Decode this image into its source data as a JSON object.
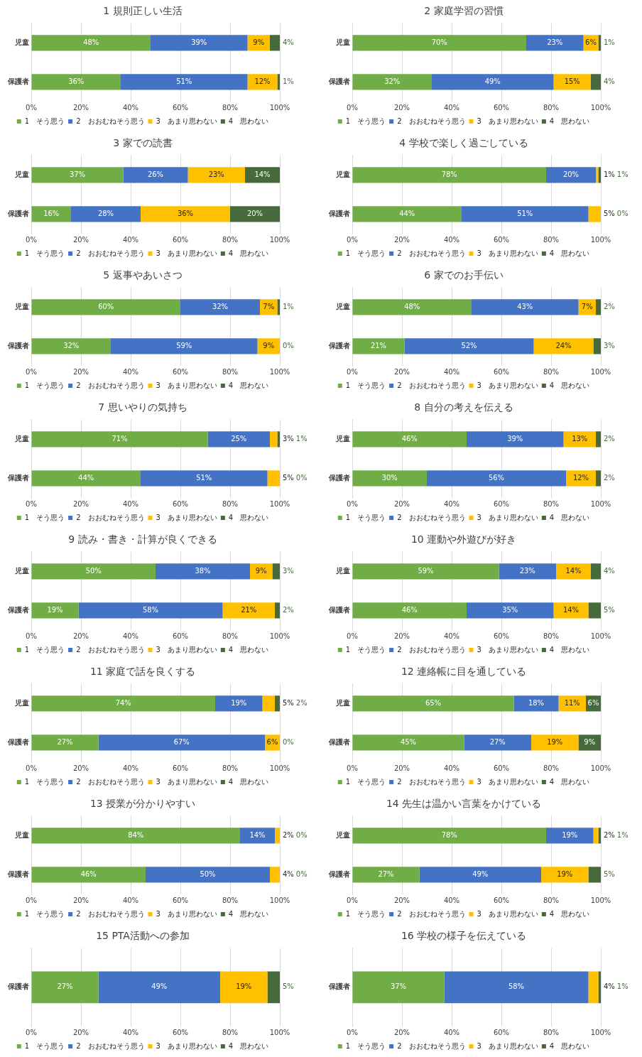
{
  "chart_data": [
    {
      "type": "bar",
      "orientation": "horizontal",
      "stacked": true,
      "title": "1 規則正しい生活",
      "categories": [
        "児童",
        "保護者"
      ],
      "xlim": [
        0,
        100
      ],
      "xticks": [
        {
          "value": 0,
          "label": "0%"
        },
        {
          "value": 20,
          "label": "20%"
        },
        {
          "value": 40,
          "label": "40%"
        },
        {
          "value": 60,
          "label": "60%"
        },
        {
          "value": 80,
          "label": "80%"
        },
        {
          "value": 100,
          "label": "100%"
        }
      ],
      "grid": "x",
      "legend": "bottom",
      "series": [
        {
          "name": "1　そう思う",
          "color": "#70ad47",
          "values": [
            48,
            36
          ],
          "value_labels": [
            "48%",
            "36%"
          ]
        },
        {
          "name": "2　おおむねそう思う",
          "color": "#4472c4",
          "values": [
            39,
            51
          ],
          "value_labels": [
            "39%",
            "51%"
          ]
        },
        {
          "name": "3　あまり思わない",
          "color": "#ffc000",
          "values": [
            9,
            12
          ],
          "value_labels": [
            "9%",
            "12%"
          ]
        },
        {
          "name": "4　思わない",
          "color": "#466a3b",
          "values": [
            4,
            1
          ],
          "value_labels": [
            "4%",
            "1%"
          ]
        }
      ]
    },
    {
      "type": "bar",
      "orientation": "horizontal",
      "stacked": true,
      "title": "2 家庭学習の習慣",
      "categories": [
        "児童",
        "保護者"
      ],
      "xlim": [
        0,
        100
      ],
      "xticks": [
        {
          "value": 0,
          "label": "0%"
        },
        {
          "value": 20,
          "label": "20%"
        },
        {
          "value": 40,
          "label": "40%"
        },
        {
          "value": 60,
          "label": "60%"
        },
        {
          "value": 80,
          "label": "80%"
        },
        {
          "value": 100,
          "label": "100%"
        }
      ],
      "grid": "x",
      "legend": "bottom",
      "series": [
        {
          "name": "1　そう思う",
          "color": "#70ad47",
          "values": [
            70,
            32
          ],
          "value_labels": [
            "70%",
            "32%"
          ]
        },
        {
          "name": "2　おおむねそう思う",
          "color": "#4472c4",
          "values": [
            23,
            49
          ],
          "value_labels": [
            "23%",
            "49%"
          ]
        },
        {
          "name": "3　あまり思わない",
          "color": "#ffc000",
          "values": [
            6,
            15
          ],
          "value_labels": [
            "6%",
            "15%"
          ]
        },
        {
          "name": "4　思わない",
          "color": "#466a3b",
          "values": [
            1,
            4
          ],
          "value_labels": [
            "1%",
            "4%"
          ]
        }
      ]
    },
    {
      "type": "bar",
      "orientation": "horizontal",
      "stacked": true,
      "title": "3 家での読書",
      "categories": [
        "児童",
        "保護者"
      ],
      "xlim": [
        0,
        100
      ],
      "xticks": [
        {
          "value": 0,
          "label": "0%"
        },
        {
          "value": 20,
          "label": "20%"
        },
        {
          "value": 40,
          "label": "40%"
        },
        {
          "value": 60,
          "label": "60%"
        },
        {
          "value": 80,
          "label": "80%"
        },
        {
          "value": 100,
          "label": "100%"
        }
      ],
      "grid": "x",
      "legend": "bottom",
      "series": [
        {
          "name": "1　そう思う",
          "color": "#70ad47",
          "values": [
            37,
            16
          ],
          "value_labels": [
            "37%",
            "16%"
          ]
        },
        {
          "name": "2　おおむねそう思う",
          "color": "#4472c4",
          "values": [
            26,
            28
          ],
          "value_labels": [
            "26%",
            "28%"
          ]
        },
        {
          "name": "3　あまり思わない",
          "color": "#ffc000",
          "values": [
            23,
            36
          ],
          "value_labels": [
            "23%",
            "36%"
          ]
        },
        {
          "name": "4　思わない",
          "color": "#466a3b",
          "values": [
            14,
            20
          ],
          "value_labels": [
            "14%",
            "20%"
          ]
        }
      ]
    },
    {
      "type": "bar",
      "orientation": "horizontal",
      "stacked": true,
      "title": "4 学校で楽しく過ごしている",
      "categories": [
        "児童",
        "保護者"
      ],
      "xlim": [
        0,
        100
      ],
      "xticks": [
        {
          "value": 0,
          "label": "0%"
        },
        {
          "value": 20,
          "label": "20%"
        },
        {
          "value": 40,
          "label": "40%"
        },
        {
          "value": 60,
          "label": "60%"
        },
        {
          "value": 80,
          "label": "80%"
        },
        {
          "value": 100,
          "label": "100%"
        }
      ],
      "grid": "x",
      "legend": "bottom",
      "series": [
        {
          "name": "1　そう思う",
          "color": "#70ad47",
          "values": [
            78,
            44
          ],
          "value_labels": [
            "78%",
            "44%"
          ]
        },
        {
          "name": "2　おおむねそう思う",
          "color": "#4472c4",
          "values": [
            20,
            51
          ],
          "value_labels": [
            "20%",
            "51%"
          ]
        },
        {
          "name": "3　あまり思わない",
          "color": "#ffc000",
          "values": [
            1,
            5
          ],
          "value_labels": [
            "1%",
            "5%"
          ]
        },
        {
          "name": "4　思わない",
          "color": "#466a3b",
          "values": [
            1,
            0
          ],
          "value_labels": [
            "1%",
            "0%"
          ]
        }
      ]
    },
    {
      "type": "bar",
      "orientation": "horizontal",
      "stacked": true,
      "title": "5 返事やあいさつ",
      "categories": [
        "児童",
        "保護者"
      ],
      "xlim": [
        0,
        100
      ],
      "xticks": [
        {
          "value": 0,
          "label": "0%"
        },
        {
          "value": 20,
          "label": "20%"
        },
        {
          "value": 40,
          "label": "40%"
        },
        {
          "value": 60,
          "label": "60%"
        },
        {
          "value": 80,
          "label": "80%"
        },
        {
          "value": 100,
          "label": "100%"
        }
      ],
      "grid": "x",
      "legend": "bottom",
      "series": [
        {
          "name": "1　そう思う",
          "color": "#70ad47",
          "values": [
            60,
            32
          ],
          "value_labels": [
            "60%",
            "32%"
          ]
        },
        {
          "name": "2　おおむねそう思う",
          "color": "#4472c4",
          "values": [
            32,
            59
          ],
          "value_labels": [
            "32%",
            "59%"
          ]
        },
        {
          "name": "3　あまり思わない",
          "color": "#ffc000",
          "values": [
            7,
            9
          ],
          "value_labels": [
            "7%",
            "9%"
          ]
        },
        {
          "name": "4　思わない",
          "color": "#466a3b",
          "values": [
            1,
            0
          ],
          "value_labels": [
            "1%",
            "0%"
          ]
        }
      ]
    },
    {
      "type": "bar",
      "orientation": "horizontal",
      "stacked": true,
      "title": "6 家でのお手伝い",
      "categories": [
        "児童",
        "保護者"
      ],
      "xlim": [
        0,
        100
      ],
      "xticks": [
        {
          "value": 0,
          "label": "0%"
        },
        {
          "value": 20,
          "label": "20%"
        },
        {
          "value": 40,
          "label": "40%"
        },
        {
          "value": 60,
          "label": "60%"
        },
        {
          "value": 80,
          "label": "80%"
        },
        {
          "value": 100,
          "label": "100%"
        }
      ],
      "grid": "x",
      "legend": "bottom",
      "series": [
        {
          "name": "1　そう思う",
          "color": "#70ad47",
          "values": [
            48,
            21
          ],
          "value_labels": [
            "48%",
            "21%"
          ]
        },
        {
          "name": "2　おおむねそう思う",
          "color": "#4472c4",
          "values": [
            43,
            52
          ],
          "value_labels": [
            "43%",
            "52%"
          ]
        },
        {
          "name": "3　あまり思わない",
          "color": "#ffc000",
          "values": [
            7,
            24
          ],
          "value_labels": [
            "7%",
            "24%"
          ]
        },
        {
          "name": "4　思わない",
          "color": "#466a3b",
          "values": [
            2,
            3
          ],
          "value_labels": [
            "2%",
            "3%"
          ]
        }
      ]
    },
    {
      "type": "bar",
      "orientation": "horizontal",
      "stacked": true,
      "title": "7 思いやりの気持ち",
      "categories": [
        "児童",
        "保護者"
      ],
      "xlim": [
        0,
        100
      ],
      "xticks": [
        {
          "value": 0,
          "label": "0%"
        },
        {
          "value": 20,
          "label": "20%"
        },
        {
          "value": 40,
          "label": "40%"
        },
        {
          "value": 60,
          "label": "60%"
        },
        {
          "value": 80,
          "label": "80%"
        },
        {
          "value": 100,
          "label": "100%"
        }
      ],
      "grid": "x",
      "legend": "bottom",
      "series": [
        {
          "name": "1　そう思う",
          "color": "#70ad47",
          "values": [
            71,
            44
          ],
          "value_labels": [
            "71%",
            "44%"
          ]
        },
        {
          "name": "2　おおむねそう思う",
          "color": "#4472c4",
          "values": [
            25,
            51
          ],
          "value_labels": [
            "25%",
            "51%"
          ]
        },
        {
          "name": "3　あまり思わない",
          "color": "#ffc000",
          "values": [
            3,
            5
          ],
          "value_labels": [
            "3%",
            "5%"
          ]
        },
        {
          "name": "4　思わない",
          "color": "#466a3b",
          "values": [
            1,
            0
          ],
          "value_labels": [
            "1%",
            "0%"
          ]
        }
      ]
    },
    {
      "type": "bar",
      "orientation": "horizontal",
      "stacked": true,
      "title": "8 自分の考えを伝える",
      "categories": [
        "児童",
        "保護者"
      ],
      "xlim": [
        0,
        100
      ],
      "xticks": [
        {
          "value": 0,
          "label": "0%"
        },
        {
          "value": 20,
          "label": "20%"
        },
        {
          "value": 40,
          "label": "40%"
        },
        {
          "value": 60,
          "label": "60%"
        },
        {
          "value": 80,
          "label": "80%"
        },
        {
          "value": 100,
          "label": "100%"
        }
      ],
      "grid": "x",
      "legend": "bottom",
      "series": [
        {
          "name": "1　そう思う",
          "color": "#70ad47",
          "values": [
            46,
            30
          ],
          "value_labels": [
            "46%",
            "30%"
          ]
        },
        {
          "name": "2　おおむねそう思う",
          "color": "#4472c4",
          "values": [
            39,
            56
          ],
          "value_labels": [
            "39%",
            "56%"
          ]
        },
        {
          "name": "3　あまり思わない",
          "color": "#ffc000",
          "values": [
            13,
            12
          ],
          "value_labels": [
            "13%",
            "12%"
          ]
        },
        {
          "name": "4　思わない",
          "color": "#466a3b",
          "values": [
            2,
            2
          ],
          "value_labels": [
            "2%",
            "2%"
          ]
        }
      ]
    },
    {
      "type": "bar",
      "orientation": "horizontal",
      "stacked": true,
      "title": "9 読み・書き・計算が良くできる",
      "categories": [
        "児童",
        "保護者"
      ],
      "xlim": [
        0,
        100
      ],
      "xticks": [
        {
          "value": 0,
          "label": "0%"
        },
        {
          "value": 20,
          "label": "20%"
        },
        {
          "value": 40,
          "label": "40%"
        },
        {
          "value": 60,
          "label": "60%"
        },
        {
          "value": 80,
          "label": "80%"
        },
        {
          "value": 100,
          "label": "100%"
        }
      ],
      "grid": "x",
      "legend": "bottom",
      "series": [
        {
          "name": "1　そう思う",
          "color": "#70ad47",
          "values": [
            50,
            19
          ],
          "value_labels": [
            "50%",
            "19%"
          ]
        },
        {
          "name": "2　おおむねそう思う",
          "color": "#4472c4",
          "values": [
            38,
            58
          ],
          "value_labels": [
            "38%",
            "58%"
          ]
        },
        {
          "name": "3　あまり思わない",
          "color": "#ffc000",
          "values": [
            9,
            21
          ],
          "value_labels": [
            "9%",
            "21%"
          ]
        },
        {
          "name": "4　思わない",
          "color": "#466a3b",
          "values": [
            3,
            2
          ],
          "value_labels": [
            "3%",
            "2%"
          ]
        }
      ]
    },
    {
      "type": "bar",
      "orientation": "horizontal",
      "stacked": true,
      "title": "10 運動や外遊びが好き",
      "categories": [
        "児童",
        "保護者"
      ],
      "xlim": [
        0,
        100
      ],
      "xticks": [
        {
          "value": 0,
          "label": "0%"
        },
        {
          "value": 20,
          "label": "20%"
        },
        {
          "value": 40,
          "label": "40%"
        },
        {
          "value": 60,
          "label": "60%"
        },
        {
          "value": 80,
          "label": "80%"
        },
        {
          "value": 100,
          "label": "100%"
        }
      ],
      "grid": "x",
      "legend": "bottom",
      "series": [
        {
          "name": "1　そう思う",
          "color": "#70ad47",
          "values": [
            59,
            46
          ],
          "value_labels": [
            "59%",
            "46%"
          ]
        },
        {
          "name": "2　おおむねそう思う",
          "color": "#4472c4",
          "values": [
            23,
            35
          ],
          "value_labels": [
            "23%",
            "35%"
          ]
        },
        {
          "name": "3　あまり思わない",
          "color": "#ffc000",
          "values": [
            14,
            14
          ],
          "value_labels": [
            "14%",
            "14%"
          ]
        },
        {
          "name": "4　思わない",
          "color": "#466a3b",
          "values": [
            4,
            5
          ],
          "value_labels": [
            "4%",
            "5%"
          ]
        }
      ]
    },
    {
      "type": "bar",
      "orientation": "horizontal",
      "stacked": true,
      "title": "11 家庭で話を良くする",
      "categories": [
        "児童",
        "保護者"
      ],
      "xlim": [
        0,
        100
      ],
      "xticks": [
        {
          "value": 0,
          "label": "0%"
        },
        {
          "value": 20,
          "label": "20%"
        },
        {
          "value": 40,
          "label": "40%"
        },
        {
          "value": 60,
          "label": "60%"
        },
        {
          "value": 80,
          "label": "80%"
        },
        {
          "value": 100,
          "label": "100%"
        }
      ],
      "grid": "x",
      "legend": "bottom",
      "series": [
        {
          "name": "1　そう思う",
          "color": "#70ad47",
          "values": [
            74,
            27
          ],
          "value_labels": [
            "74%",
            "27%"
          ]
        },
        {
          "name": "2　おおむねそう思う",
          "color": "#4472c4",
          "values": [
            19,
            67
          ],
          "value_labels": [
            "19%",
            "67%"
          ]
        },
        {
          "name": "3　あまり思わない",
          "color": "#ffc000",
          "values": [
            5,
            6
          ],
          "value_labels": [
            "5%",
            "6%"
          ]
        },
        {
          "name": "4　思わない",
          "color": "#466a3b",
          "values": [
            2,
            0
          ],
          "value_labels": [
            "2%",
            "0%"
          ]
        }
      ]
    },
    {
      "type": "bar",
      "orientation": "horizontal",
      "stacked": true,
      "title": "12 連絡帳に目を通している",
      "categories": [
        "児童",
        "保護者"
      ],
      "xlim": [
        0,
        100
      ],
      "xticks": [
        {
          "value": 0,
          "label": "0%"
        },
        {
          "value": 20,
          "label": "20%"
        },
        {
          "value": 40,
          "label": "40%"
        },
        {
          "value": 60,
          "label": "60%"
        },
        {
          "value": 80,
          "label": "80%"
        },
        {
          "value": 100,
          "label": "100%"
        }
      ],
      "grid": "x",
      "legend": "bottom",
      "series": [
        {
          "name": "1　そう思う",
          "color": "#70ad47",
          "values": [
            65,
            45
          ],
          "value_labels": [
            "65%",
            "45%"
          ]
        },
        {
          "name": "2　おおむねそう思う",
          "color": "#4472c4",
          "values": [
            18,
            27
          ],
          "value_labels": [
            "18%",
            "27%"
          ]
        },
        {
          "name": "3　あまり思わない",
          "color": "#ffc000",
          "values": [
            11,
            19
          ],
          "value_labels": [
            "11%",
            "19%"
          ]
        },
        {
          "name": "4　思わない",
          "color": "#466a3b",
          "values": [
            6,
            9
          ],
          "value_labels": [
            "6%",
            "9%"
          ]
        }
      ]
    },
    {
      "type": "bar",
      "orientation": "horizontal",
      "stacked": true,
      "title": "13 授業が分かりやすい",
      "categories": [
        "児童",
        "保護者"
      ],
      "xlim": [
        0,
        100
      ],
      "xticks": [
        {
          "value": 0,
          "label": "0%"
        },
        {
          "value": 20,
          "label": "20%"
        },
        {
          "value": 40,
          "label": "40%"
        },
        {
          "value": 60,
          "label": "60%"
        },
        {
          "value": 80,
          "label": "80%"
        },
        {
          "value": 100,
          "label": "100%"
        }
      ],
      "grid": "x",
      "legend": "bottom",
      "series": [
        {
          "name": "1　そう思う",
          "color": "#70ad47",
          "values": [
            84,
            46
          ],
          "value_labels": [
            "84%",
            "46%"
          ]
        },
        {
          "name": "2　おおむねそう思う",
          "color": "#4472c4",
          "values": [
            14,
            50
          ],
          "value_labels": [
            "14%",
            "50%"
          ]
        },
        {
          "name": "3　あまり思わない",
          "color": "#ffc000",
          "values": [
            2,
            4
          ],
          "value_labels": [
            "2%",
            "4%"
          ]
        },
        {
          "name": "4　思わない",
          "color": "#466a3b",
          "values": [
            0,
            0
          ],
          "value_labels": [
            "0%",
            "0%"
          ]
        }
      ]
    },
    {
      "type": "bar",
      "orientation": "horizontal",
      "stacked": true,
      "title": "14 先生は温かい言葉をかけている",
      "categories": [
        "児童",
        "保護者"
      ],
      "xlim": [
        0,
        100
      ],
      "xticks": [
        {
          "value": 0,
          "label": "0%"
        },
        {
          "value": 20,
          "label": "20%"
        },
        {
          "value": 40,
          "label": "40%"
        },
        {
          "value": 60,
          "label": "60%"
        },
        {
          "value": 80,
          "label": "80%"
        },
        {
          "value": 100,
          "label": "100%"
        }
      ],
      "grid": "x",
      "legend": "bottom",
      "series": [
        {
          "name": "1　そう思う",
          "color": "#70ad47",
          "values": [
            78,
            27
          ],
          "value_labels": [
            "78%",
            "27%"
          ]
        },
        {
          "name": "2　おおむねそう思う",
          "color": "#4472c4",
          "values": [
            19,
            49
          ],
          "value_labels": [
            "19%",
            "49%"
          ]
        },
        {
          "name": "3　あまり思わない",
          "color": "#ffc000",
          "values": [
            2,
            19
          ],
          "value_labels": [
            "2%",
            "19%"
          ]
        },
        {
          "name": "4　思わない",
          "color": "#466a3b",
          "values": [
            1,
            5
          ],
          "value_labels": [
            "1%",
            "5%"
          ]
        }
      ]
    },
    {
      "type": "bar",
      "orientation": "horizontal",
      "stacked": true,
      "title": "15 PTA活動への参加",
      "categories": [
        "保護者"
      ],
      "xlim": [
        0,
        100
      ],
      "xticks": [
        {
          "value": 0,
          "label": "0%"
        },
        {
          "value": 20,
          "label": "20%"
        },
        {
          "value": 40,
          "label": "40%"
        },
        {
          "value": 60,
          "label": "60%"
        },
        {
          "value": 80,
          "label": "80%"
        },
        {
          "value": 100,
          "label": "100%"
        }
      ],
      "grid": "x",
      "legend": "bottom",
      "series": [
        {
          "name": "1　そう思う",
          "color": "#70ad47",
          "values": [
            27
          ],
          "value_labels": [
            "27%"
          ]
        },
        {
          "name": "2　おおむねそう思う",
          "color": "#4472c4",
          "values": [
            49
          ],
          "value_labels": [
            "49%"
          ]
        },
        {
          "name": "3　あまり思わない",
          "color": "#ffc000",
          "values": [
            19
          ],
          "value_labels": [
            "19%"
          ]
        },
        {
          "name": "4　思わない",
          "color": "#466a3b",
          "values": [
            5
          ],
          "value_labels": [
            "5%"
          ]
        }
      ]
    },
    {
      "type": "bar",
      "orientation": "horizontal",
      "stacked": true,
      "title": "16 学校の様子を伝えている",
      "categories": [
        "保護者"
      ],
      "xlim": [
        0,
        100
      ],
      "xticks": [
        {
          "value": 0,
          "label": "0%"
        },
        {
          "value": 20,
          "label": "20%"
        },
        {
          "value": 40,
          "label": "40%"
        },
        {
          "value": 60,
          "label": "60%"
        },
        {
          "value": 80,
          "label": "80%"
        },
        {
          "value": 100,
          "label": "100%"
        }
      ],
      "grid": "x",
      "legend": "bottom",
      "series": [
        {
          "name": "1　そう思う",
          "color": "#70ad47",
          "values": [
            37
          ],
          "value_labels": [
            "37%"
          ]
        },
        {
          "name": "2　おおむねそう思う",
          "color": "#4472c4",
          "values": [
            58
          ],
          "value_labels": [
            "58%"
          ]
        },
        {
          "name": "3　あまり思わない",
          "color": "#ffc000",
          "values": [
            4
          ],
          "value_labels": [
            "4%"
          ]
        },
        {
          "name": "4　思わない",
          "color": "#466a3b",
          "values": [
            1
          ],
          "value_labels": [
            "1%"
          ]
        }
      ]
    }
  ]
}
